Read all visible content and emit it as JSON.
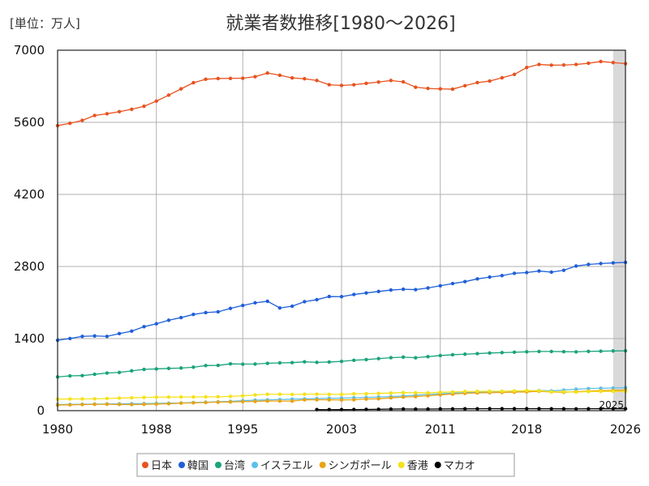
{
  "chart_data": {
    "type": "line",
    "title": "就業者数推移[1980～2026]",
    "unit_label": "[単位：万人]",
    "xlabel": "",
    "ylabel": "",
    "ylim": [
      0,
      7000
    ],
    "xlim": [
      1980,
      2026
    ],
    "yticks": [
      0,
      1400,
      2800,
      4200,
      5600,
      7000
    ],
    "xticks": [
      1980,
      1988,
      1995,
      2003,
      2011,
      2018,
      2026
    ],
    "grid": true,
    "legend_position": "bottom",
    "shaded_region": {
      "from": 2025,
      "to": 2026,
      "color": "#d9d9d9",
      "label": "2025"
    },
    "series": [
      {
        "name": "日本",
        "color": "#e8521f",
        "x": [
          1980,
          1981,
          1982,
          1983,
          1984,
          1985,
          1986,
          1987,
          1988,
          1989,
          1990,
          1991,
          1992,
          1993,
          1994,
          1995,
          1996,
          1997,
          1998,
          1999,
          2000,
          2001,
          2002,
          2003,
          2004,
          2005,
          2006,
          2007,
          2008,
          2009,
          2010,
          2011,
          2012,
          2013,
          2014,
          2015,
          2016,
          2017,
          2018,
          2019,
          2020,
          2021,
          2022,
          2023,
          2024,
          2025,
          2026
        ],
        "values": [
          5536,
          5581,
          5638,
          5733,
          5766,
          5807,
          5853,
          5911,
          6011,
          6128,
          6249,
          6369,
          6436,
          6450,
          6453,
          6457,
          6486,
          6557,
          6514,
          6462,
          6446,
          6412,
          6330,
          6316,
          6329,
          6356,
          6382,
          6412,
          6385,
          6282,
          6257,
          6249,
          6244,
          6311,
          6371,
          6401,
          6465,
          6530,
          6664,
          6724,
          6710,
          6713,
          6723,
          6747,
          6781,
          6760,
          6740
        ]
      },
      {
        "name": "韓国",
        "color": "#1f5fd8",
        "x": [
          1980,
          1981,
          1982,
          1983,
          1984,
          1985,
          1986,
          1987,
          1988,
          1989,
          1990,
          1991,
          1992,
          1993,
          1994,
          1995,
          1996,
          1997,
          1998,
          1999,
          2000,
          2001,
          2002,
          2003,
          2004,
          2005,
          2006,
          2007,
          2008,
          2009,
          2010,
          2011,
          2012,
          2013,
          2014,
          2015,
          2016,
          2017,
          2018,
          2019,
          2020,
          2021,
          2022,
          2023,
          2024,
          2025,
          2026
        ],
        "values": [
          1368,
          1401,
          1443,
          1451,
          1443,
          1497,
          1544,
          1631,
          1687,
          1756,
          1808,
          1869,
          1905,
          1920,
          1986,
          2043,
          2094,
          2124,
          1994,
          2029,
          2116,
          2156,
          2217,
          2214,
          2256,
          2286,
          2315,
          2343,
          2358,
          2351,
          2383,
          2426,
          2468,
          2506,
          2559,
          2594,
          2623,
          2668,
          2682,
          2712,
          2690,
          2727,
          2809,
          2840,
          2857,
          2870,
          2880
        ]
      },
      {
        "name": "台湾",
        "color": "#1aa37a",
        "x": [
          1980,
          1981,
          1982,
          1983,
          1984,
          1985,
          1986,
          1987,
          1988,
          1989,
          1990,
          1991,
          1992,
          1993,
          1994,
          1995,
          1996,
          1997,
          1998,
          1999,
          2000,
          2001,
          2002,
          2003,
          2004,
          2005,
          2006,
          2007,
          2008,
          2009,
          2010,
          2011,
          2012,
          2013,
          2014,
          2015,
          2016,
          2017,
          2018,
          2019,
          2020,
          2021,
          2022,
          2023,
          2024,
          2025,
          2026
        ],
        "values": [
          655,
          676,
          681,
          707,
          731,
          743,
          773,
          802,
          811,
          821,
          828,
          844,
          876,
          880,
          909,
          904,
          906,
          920,
          928,
          933,
          949,
          938,
          945,
          957,
          979,
          992,
          1011,
          1029,
          1040,
          1028,
          1049,
          1071,
          1086,
          1097,
          1108,
          1120,
          1127,
          1135,
          1143,
          1150,
          1150,
          1145,
          1142,
          1152,
          1155,
          1160,
          1162
        ]
      },
      {
        "name": "イスラエル",
        "color": "#5cc0ea",
        "x": [
          1980,
          1981,
          1982,
          1983,
          1984,
          1985,
          1986,
          1987,
          1988,
          1989,
          1990,
          1991,
          1992,
          1993,
          1994,
          1995,
          1996,
          1997,
          1998,
          1999,
          2000,
          2001,
          2002,
          2003,
          2004,
          2005,
          2006,
          2007,
          2008,
          2009,
          2010,
          2011,
          2012,
          2013,
          2014,
          2015,
          2016,
          2017,
          2018,
          2019,
          2020,
          2021,
          2022,
          2023,
          2024,
          2025,
          2026
        ],
        "values": [
          119,
          121,
          125,
          128,
          131,
          133,
          135,
          137,
          141,
          145,
          149,
          158,
          165,
          172,
          180,
          194,
          205,
          211,
          216,
          223,
          229,
          236,
          240,
          244,
          250,
          257,
          265,
          273,
          285,
          300,
          315,
          327,
          341,
          349,
          357,
          366,
          374,
          379,
          384,
          390,
          385,
          400,
          417,
          430,
          435,
          440,
          445
        ]
      },
      {
        "name": "シンガポール",
        "color": "#e8a317",
        "x": [
          1980,
          1981,
          1982,
          1983,
          1984,
          1985,
          1986,
          1987,
          1988,
          1989,
          1990,
          1991,
          1992,
          1993,
          1994,
          1995,
          1996,
          1997,
          1998,
          1999,
          2000,
          2001,
          2002,
          2003,
          2004,
          2005,
          2006,
          2007,
          2008,
          2009,
          2010,
          2011,
          2012,
          2013,
          2014,
          2015,
          2016,
          2017,
          2018,
          2019,
          2020,
          2021,
          2022,
          2023,
          2024,
          2025,
          2026
        ],
        "values": [
          109,
          113,
          118,
          122,
          124,
          121,
          118,
          123,
          128,
          135,
          146,
          152,
          159,
          165,
          170,
          175,
          180,
          188,
          187,
          186,
          210,
          212,
          210,
          208,
          212,
          226,
          231,
          249,
          264,
          273,
          289,
          308,
          322,
          337,
          345,
          350,
          354,
          359,
          365,
          376,
          362,
          356,
          370,
          380,
          388,
          394,
          399
        ]
      },
      {
        "name": "香港",
        "color": "#f5e21b",
        "x": [
          1980,
          1981,
          1982,
          1983,
          1984,
          1985,
          1986,
          1987,
          1988,
          1989,
          1990,
          1991,
          1992,
          1993,
          1994,
          1995,
          1996,
          1997,
          1998,
          1999,
          2000,
          2001,
          2002,
          2003,
          2004,
          2005,
          2006,
          2007,
          2008,
          2009,
          2010,
          2011,
          2012,
          2013,
          2014,
          2015,
          2016,
          2017,
          2018,
          2019,
          2020,
          2021,
          2022,
          2023,
          2024,
          2025,
          2026
        ],
        "values": [
          224,
          227,
          228,
          230,
          236,
          245,
          251,
          257,
          262,
          264,
          265,
          266,
          268,
          270,
          277,
          288,
          305,
          319,
          319,
          315,
          320,
          322,
          318,
          317,
          327,
          330,
          335,
          343,
          351,
          347,
          347,
          357,
          364,
          372,
          375,
          377,
          378,
          383,
          389,
          387,
          367,
          367,
          360,
          370,
          372,
          374,
          376
        ]
      },
      {
        "name": "マカオ",
        "color": "#000000",
        "x": [
          2001,
          2002,
          2003,
          2004,
          2005,
          2006,
          2007,
          2008,
          2009,
          2010,
          2011,
          2012,
          2013,
          2014,
          2015,
          2016,
          2017,
          2018,
          2019,
          2020,
          2021,
          2022,
          2023,
          2024,
          2025,
          2026
        ],
        "values": [
          21,
          20,
          21,
          22,
          24,
          27,
          31,
          33,
          31,
          32,
          34,
          35,
          36,
          37,
          39,
          38,
          38,
          38,
          38,
          37,
          36,
          35,
          37,
          38,
          38,
          38
        ]
      }
    ]
  }
}
